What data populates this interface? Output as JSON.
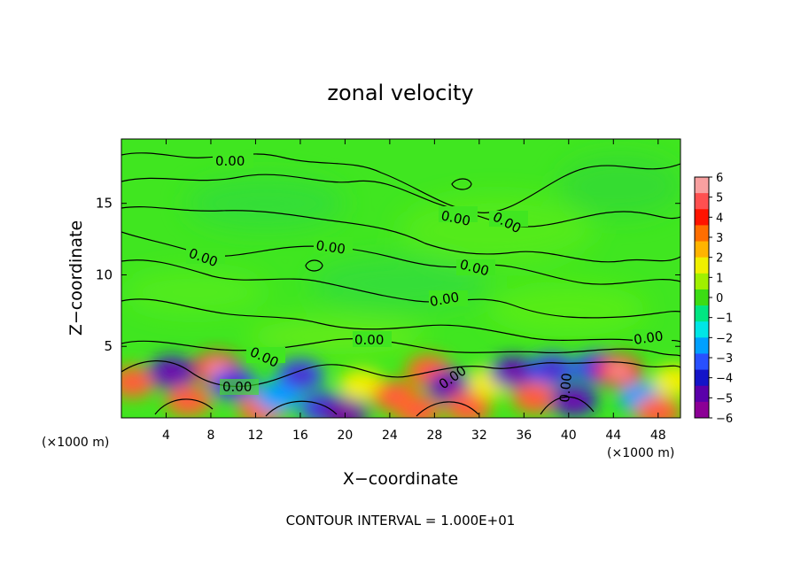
{
  "chart_data": {
    "type": "heatmap",
    "title": "zonal velocity",
    "xlabel": "X−coordinate",
    "ylabel": "Z−coordinate",
    "x_unit_left": "(×1000 m)",
    "x_unit_right": "(×1000 m)",
    "xlim": [
      0,
      50
    ],
    "ylim": [
      0,
      19.5
    ],
    "x_ticks": [
      4,
      8,
      12,
      16,
      20,
      24,
      28,
      32,
      36,
      40,
      44,
      48
    ],
    "y_ticks": [
      5,
      10,
      15
    ],
    "grid": false,
    "colorbar": {
      "range": [
        -6,
        6
      ],
      "ticks": [
        "6",
        "5",
        "4",
        "3",
        "2",
        "1",
        "0",
        "−1",
        "−2",
        "−3",
        "−4",
        "−5",
        "−6"
      ],
      "colors": [
        "#f8a0a0",
        "#ff5050",
        "#ff1400",
        "#ff6e00",
        "#ffb400",
        "#f0f000",
        "#a0f000",
        "#3cdc14",
        "#00e682",
        "#00e6e6",
        "#00a0ff",
        "#2850ff",
        "#1414c8",
        "#5a00aa",
        "#8c0096"
      ]
    },
    "contour_label": "0.00",
    "contour_interval_text": "CONTOUR INTERVAL = 1.000E+01",
    "surface_anomalies": [
      {
        "x": 1,
        "z": 2.5,
        "value": 3
      },
      {
        "x": 4.5,
        "z": 3.2,
        "value": -4
      },
      {
        "x": 6,
        "z": 1.2,
        "value": 3
      },
      {
        "x": 8.5,
        "z": 3.5,
        "value": 4
      },
      {
        "x": 10,
        "z": 2.4,
        "value": -3
      },
      {
        "x": 12.5,
        "z": 0.6,
        "value": 3
      },
      {
        "x": 14,
        "z": 1.5,
        "value": -2
      },
      {
        "x": 16,
        "z": 3,
        "value": -3.5
      },
      {
        "x": 18,
        "z": 0.7,
        "value": -3
      },
      {
        "x": 20,
        "z": 0.4,
        "value": -5
      },
      {
        "x": 21.5,
        "z": 2.3,
        "value": 2
      },
      {
        "x": 24.5,
        "z": 1.5,
        "value": 3
      },
      {
        "x": 26.5,
        "z": 0.5,
        "value": 3
      },
      {
        "x": 27.5,
        "z": 3.3,
        "value": 3.5
      },
      {
        "x": 29.5,
        "z": 2.2,
        "value": -4
      },
      {
        "x": 31,
        "z": 0.7,
        "value": 3.5
      },
      {
        "x": 33,
        "z": 2.5,
        "value": 2
      },
      {
        "x": 35,
        "z": 3.2,
        "value": -4
      },
      {
        "x": 37,
        "z": 1.4,
        "value": 3.5
      },
      {
        "x": 38.5,
        "z": 3.4,
        "value": -3
      },
      {
        "x": 40.5,
        "z": 1.2,
        "value": -4
      },
      {
        "x": 42.5,
        "z": 3.5,
        "value": -3
      },
      {
        "x": 44.5,
        "z": 3.3,
        "value": 4
      },
      {
        "x": 46.5,
        "z": 1.4,
        "value": -2.5
      },
      {
        "x": 48,
        "z": 0.4,
        "value": 3
      },
      {
        "x": 49.5,
        "z": 2.6,
        "value": 2
      }
    ]
  }
}
